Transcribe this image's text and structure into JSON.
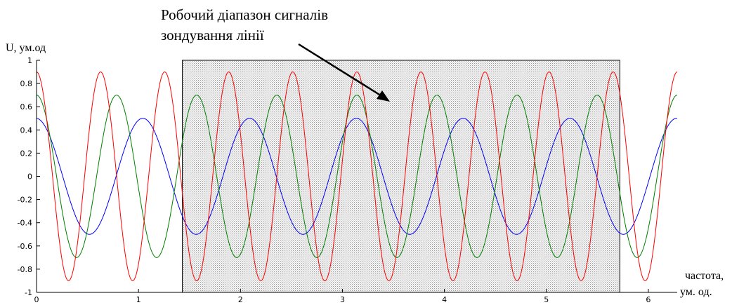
{
  "chart_data": {
    "type": "line",
    "title": "",
    "annotation": [
      "Робочий діапазон сигналів",
      "зондування лінії"
    ],
    "ylabel": "U, ум.од",
    "xlabel": [
      "частота,",
      "ум. од."
    ],
    "xlim": [
      0,
      6.283
    ],
    "ylim": [
      -1,
      1
    ],
    "x_ticks": [
      0,
      1,
      2,
      3,
      4,
      5,
      6
    ],
    "y_ticks": [
      -1,
      -0.8,
      -0.6,
      -0.4,
      -0.2,
      0,
      0.2,
      0.4,
      0.6,
      0.8,
      1
    ],
    "grid": false,
    "legend": "none",
    "shaded_region": {
      "x_range": [
        1.43,
        5.72
      ],
      "y_range": [
        -1,
        1
      ],
      "fill": "dotted-gray"
    },
    "series": [
      {
        "color": "#0000ff",
        "amplitude": 0.5,
        "frequency": 6,
        "phase": 1.6,
        "x": [
          0,
          0.5,
          1.0,
          1.55,
          2.1,
          2.62,
          3.15,
          3.67,
          4.2,
          4.72,
          5.25,
          5.77,
          6.28
        ],
        "values": [
          0.5,
          -0.5,
          0.5,
          -0.5,
          0.5,
          -0.5,
          0.5,
          -0.5,
          0.5,
          -0.5,
          0.5,
          -0.5,
          0.5
        ]
      },
      {
        "color": "#008000",
        "amplitude": 0.7,
        "frequency": 8,
        "phase": 1.57,
        "x": [
          0,
          0.39,
          0.79,
          1.18,
          1.57,
          1.96,
          2.36,
          2.75,
          3.14,
          3.53,
          3.93,
          4.32,
          4.71,
          5.11,
          5.5,
          5.89,
          6.28
        ],
        "values": [
          0.7,
          -0.7,
          0.7,
          -0.7,
          0.7,
          -0.7,
          0.7,
          -0.7,
          0.7,
          -0.7,
          0.7,
          -0.7,
          0.7,
          -0.7,
          0.7,
          -0.7,
          0.7
        ]
      },
      {
        "color": "#ff0000",
        "amplitude": 0.9,
        "frequency": 10,
        "phase": 1.57,
        "x": [
          0,
          0.31,
          0.63,
          0.94,
          1.26,
          1.57,
          1.88,
          2.2,
          2.51,
          2.83,
          3.14,
          3.46,
          3.77,
          4.08,
          4.4,
          4.71,
          5.03,
          5.34,
          5.65,
          5.97,
          6.28
        ],
        "values": [
          0.9,
          -0.9,
          0.9,
          -0.9,
          0.9,
          -0.9,
          0.9,
          -0.9,
          0.9,
          -0.9,
          0.9,
          -0.9,
          0.9,
          -0.9,
          0.9,
          -0.9,
          0.9,
          -0.9,
          0.9,
          -0.9,
          0.9
        ]
      }
    ]
  }
}
